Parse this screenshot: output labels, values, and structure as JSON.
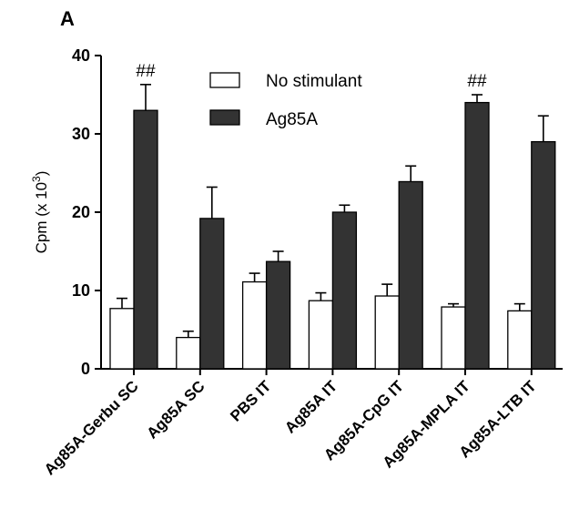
{
  "panel_label": "A",
  "chart_data": {
    "type": "bar",
    "title": "",
    "xlabel": "",
    "ylabel": "Cpm (x 10",
    "ylabel_exponent": "3",
    "ylabel_close": ")",
    "ylim": [
      0,
      40
    ],
    "yticks": [
      0,
      10,
      20,
      30,
      40
    ],
    "grid": false,
    "legend_position": "top-center",
    "categories": [
      "Ag85A-Gerbu SC",
      "Ag85A SC",
      "PBS IT",
      "Ag85A IT",
      "Ag85A-CpG IT",
      "Ag85A-MPLA IT",
      "Ag85A-LTB IT"
    ],
    "series": [
      {
        "name": "No stimulant",
        "color": "#ffffff",
        "values": [
          7.7,
          4.0,
          11.1,
          8.7,
          9.3,
          7.9,
          7.4
        ],
        "errors": [
          1.3,
          0.8,
          1.1,
          1.0,
          1.5,
          0.4,
          0.9
        ]
      },
      {
        "name": "Ag85A",
        "color": "#333333",
        "values": [
          33.0,
          19.2,
          13.7,
          20.0,
          23.9,
          34.0,
          29.0
        ],
        "errors": [
          3.3,
          4.0,
          1.3,
          0.9,
          2.0,
          1.0,
          3.3
        ]
      }
    ],
    "annotations": [
      {
        "category_index": 0,
        "series_index": 1,
        "text": "##"
      },
      {
        "category_index": 5,
        "series_index": 1,
        "text": "##"
      }
    ]
  }
}
